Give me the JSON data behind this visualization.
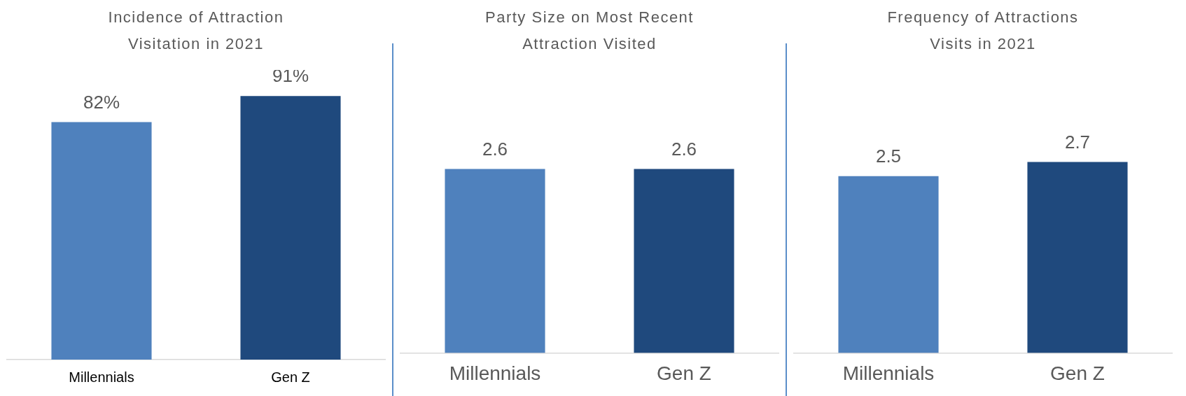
{
  "chart_data": [
    {
      "type": "bar",
      "title": "Incidence of Attraction Visitation in 2021",
      "categories": [
        "Millennials",
        "Gen Z"
      ],
      "values": [
        82,
        91
      ],
      "colors": [
        "#4f81bd",
        "#1f497d"
      ],
      "value_labels": [
        "82%",
        "91%"
      ]
    },
    {
      "type": "bar",
      "title": "Party Size on Most Recent Attraction Visited",
      "categories": [
        "Millennials",
        "Gen Z"
      ],
      "values": [
        2.6,
        2.6
      ],
      "colors": [
        "#4f81bd",
        "#1f497d"
      ],
      "data_labels": true
    },
    {
      "type": "bar",
      "title": "Frequency of Attractions Visits in 2021",
      "categories": [
        "Millennials",
        "Gen Z"
      ],
      "values": [
        2.5,
        2.7
      ],
      "colors": [
        "#4f81bd",
        "#1f497d"
      ],
      "data_labels": true
    }
  ]
}
